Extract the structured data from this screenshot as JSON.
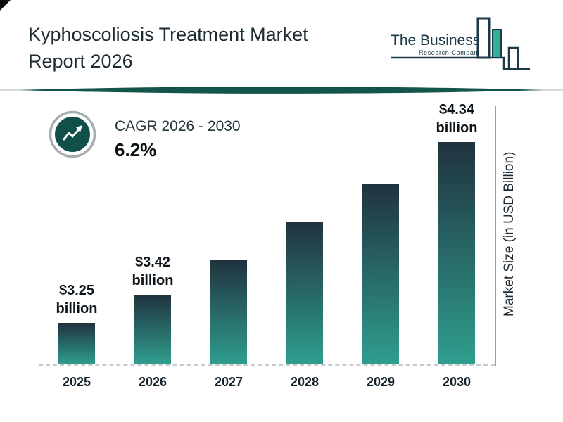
{
  "header": {
    "title_line1": "Kyphoscoliosis Treatment Market",
    "title_line2": "Report 2026",
    "logo": {
      "name_line1": "The Business",
      "name_line2": "Research Company"
    }
  },
  "cagr": {
    "label": "CAGR 2026 - 2030",
    "value": "6.2%"
  },
  "chart_data": {
    "type": "bar",
    "title": "Kyphoscoliosis Treatment Market Report 2026",
    "categories": [
      "2025",
      "2026",
      "2027",
      "2028",
      "2029",
      "2030"
    ],
    "values": [
      3.25,
      3.42,
      3.63,
      3.86,
      4.09,
      4.34
    ],
    "bar_labels": [
      "$3.25 billion",
      "$3.42 billion",
      "",
      "",
      "",
      "$4.34 billion"
    ],
    "unit": "USD Billion",
    "xlabel": "",
    "ylabel": "Market Size (in USD Billion)",
    "ylim": [
      3.0,
      4.4
    ],
    "grid": false,
    "legend": false,
    "baseline_style": "dashed",
    "bar_gradient": [
      "#20323e",
      "#2f9e8e"
    ]
  },
  "colors": {
    "accent_teal": "#13544b",
    "logo_ink": "#1b3948",
    "logo_green": "#32b295",
    "text_dark": "#1d2c34",
    "dash_gray": "#c6ccce"
  }
}
